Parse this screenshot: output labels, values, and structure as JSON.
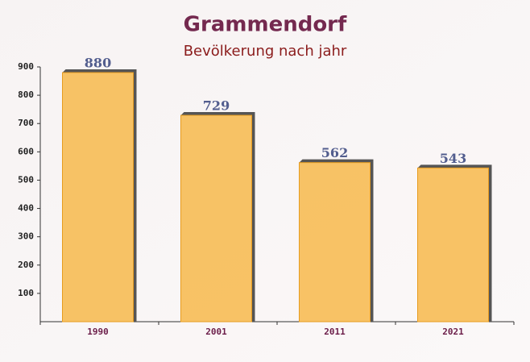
{
  "chart_data": {
    "type": "bar",
    "title": "Grammendorf",
    "subtitle": "Bevölkerung nach jahr",
    "categories": [
      "1990",
      "2001",
      "2011",
      "2021"
    ],
    "values": [
      880,
      729,
      562,
      543
    ],
    "color": "#f7b84b",
    "ylim": [
      0,
      900
    ],
    "yticks": [
      100,
      200,
      300,
      400,
      500,
      600,
      700,
      800,
      900
    ],
    "grid": false
  }
}
